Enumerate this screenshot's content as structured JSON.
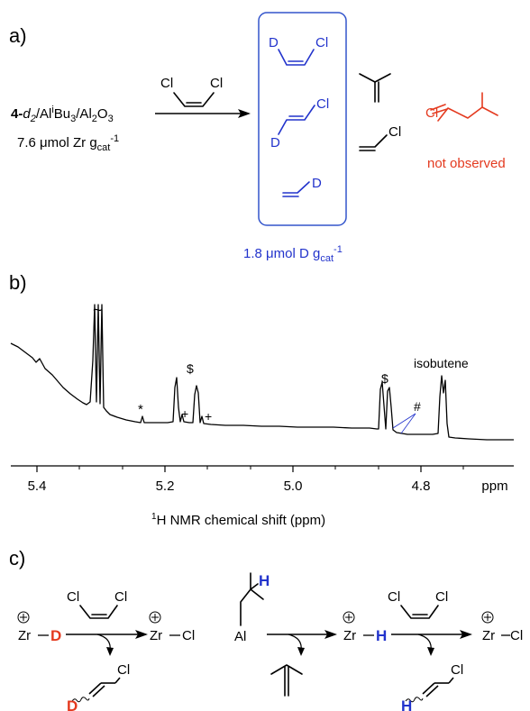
{
  "panel_a": {
    "label": "a)",
    "reagent": {
      "left_cl": "Cl",
      "right_cl": "Cl"
    },
    "catalyst": {
      "prefix": "4-",
      "d": "d",
      "sub2": "2",
      "slash_al": "/Al",
      "i": "i",
      "bu": "Bu",
      "sub3": "3",
      "slash_al2o3": "/Al",
      "sub2b": "2",
      "o": "O",
      "sub3b": "3"
    },
    "loading": {
      "text": "7.6 μmol Zr g",
      "sub": "cat",
      "sup": "-1"
    },
    "boxed_products": [
      {
        "d": "D",
        "cl": "Cl"
      },
      {
        "d": "D",
        "cl": "Cl"
      },
      {
        "d": "D"
      }
    ],
    "other_products": {
      "vinyl_chloride_cl": "Cl"
    },
    "not_observed": {
      "cl": "Cl",
      "text": "not observed"
    },
    "deuterium_yield": {
      "text": "1.8 μmol D g",
      "sub": "cat",
      "sup": "-1"
    }
  },
  "panel_b": {
    "label": "b)",
    "peak_labels": {
      "tilde": "~",
      "star": "*",
      "dollar1": "$",
      "plus1": "+",
      "plus2": "+",
      "dollar2": "$",
      "hash": "#",
      "isobutene": "isobutene"
    },
    "x_ticks": [
      "5.4",
      "5.2",
      "5.0",
      "4.8",
      "ppm"
    ],
    "xlabel_prefix": "1",
    "xlabel": "H NMR chemical shift (ppm)"
  },
  "panel_c": {
    "label": "c)",
    "zr": "Zr",
    "d": "D",
    "h": "H",
    "cl": "Cl",
    "al": "Al",
    "dash": "–"
  },
  "colors": {
    "blue": "#2233cc",
    "red": "#e43a1f",
    "box": "#3355cc"
  }
}
